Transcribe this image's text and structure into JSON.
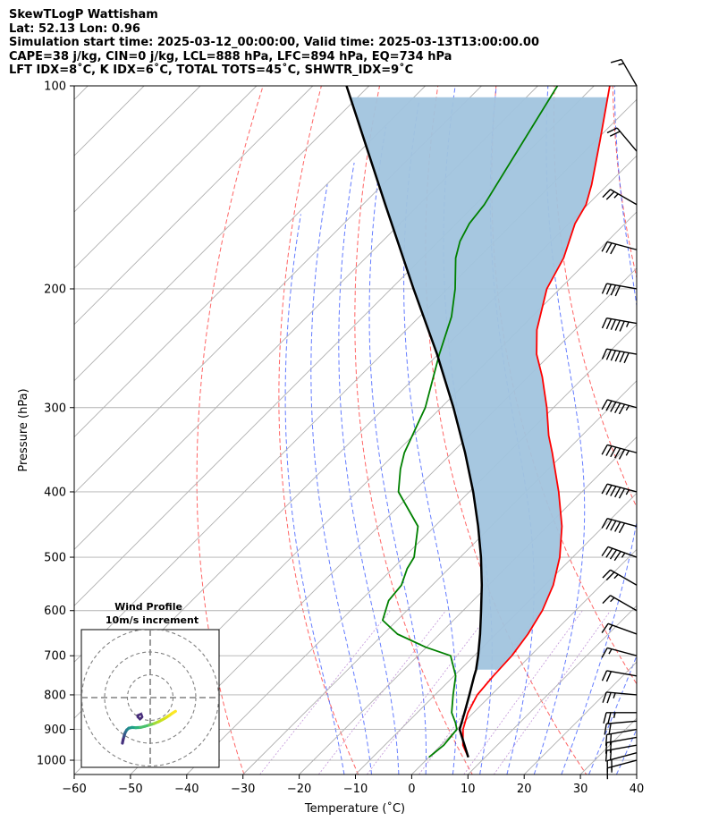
{
  "header": {
    "line1": "SkewTLogP Wattisham",
    "line2": "Lat: 52.13   Lon: 0.96",
    "line3": "Simulation start time: 2025-03-12_00:00:00, Valid time: 2025-03-13T13:00:00.00",
    "line4": "CAPE=38 j/kg, CIN=0 j/kg, LCL=888 hPa, LFC=894 hPa, EQ=734 hPa",
    "line5": "LFT IDX=8˚C, K IDX=6˚C, TOTAL TOTS=45˚C, SHWTR_IDX=9˚C"
  },
  "inset": {
    "title": "Wind Profile",
    "subtitle": "10m/s increment"
  },
  "chart_data": {
    "type": "line",
    "chart_kind": "skew-T log-P diagram",
    "xlabel": "Temperature (˚C)",
    "ylabel": "Pressure (hPa)",
    "xlim": [
      -60,
      40
    ],
    "ylim": [
      1050,
      100
    ],
    "y_scale": "log",
    "x_ticks": [
      -60,
      -50,
      -40,
      -30,
      -20,
      -10,
      0,
      10,
      20,
      30,
      40
    ],
    "x_tick_labels": [
      "−60",
      "−50",
      "−40",
      "−30",
      "−20",
      "−10",
      "0",
      "10",
      "20",
      "30",
      "40"
    ],
    "y_ticks": [
      1000,
      900,
      800,
      700,
      600,
      500,
      400,
      300,
      200,
      100
    ],
    "y_tick_labels": [
      "1000",
      "900",
      "800",
      "700",
      "600",
      "500",
      "400",
      "300",
      "200",
      "100"
    ],
    "grid": true,
    "series": [
      {
        "role": "temperature",
        "color": "#ff0000",
        "pressure": [
          990,
          950,
          900,
          850,
          800,
          750,
          700,
          650,
          600,
          550,
          500,
          450,
          400,
          350,
          330,
          300,
          270,
          250,
          230,
          200,
          180,
          160,
          150,
          140,
          120,
          100
        ],
        "temp": [
          7.0,
          3.9,
          1.1,
          -1.0,
          -2.5,
          -3.0,
          -3.3,
          -4.3,
          -5.9,
          -8.5,
          -12.3,
          -17.4,
          -24.1,
          -32.2,
          -35.9,
          -41.2,
          -47.5,
          -52.5,
          -56.8,
          -62.3,
          -64.8,
          -68.9,
          -70.3,
          -72.9,
          -79.4,
          -87.2
        ]
      },
      {
        "role": "dewpoint",
        "color": "#008000",
        "pressure": [
          990,
          950,
          900,
          880,
          850,
          800,
          750,
          700,
          680,
          650,
          620,
          580,
          550,
          520,
          500,
          450,
          400,
          370,
          350,
          300,
          250,
          220,
          200,
          180,
          170,
          160,
          150,
          100
        ],
        "temp": [
          0.0,
          0.5,
          0.0,
          -1.4,
          -3.9,
          -6.8,
          -9.7,
          -14.2,
          -20.1,
          -27.5,
          -32.6,
          -35.0,
          -35.5,
          -37.4,
          -38.2,
          -43.0,
          -52.6,
          -56.3,
          -58.5,
          -62.8,
          -69.8,
          -74.3,
          -78.6,
          -84.0,
          -86.2,
          -87.7,
          -88.4,
          -96.5
        ]
      },
      {
        "role": "parcel",
        "color": "#000000",
        "pressure": [
          990,
          900,
          888,
          850,
          800,
          750,
          734,
          700,
          650,
          600,
          550,
          500,
          450,
          400,
          350,
          300,
          250,
          200,
          150,
          100
        ],
        "temp": [
          7.0,
          0.5,
          0.0,
          -1.6,
          -3.9,
          -6.4,
          -7.2,
          -9.3,
          -12.8,
          -16.8,
          -21.2,
          -26.3,
          -32.3,
          -39.3,
          -47.7,
          -57.8,
          -70.2,
          -86.0,
          -106.0,
          -134.0
        ]
      }
    ],
    "cape_shading_color": "#a1c4de",
    "wind_barbs": {
      "color": "#000000",
      "levels_hpa": [
        1000,
        975,
        950,
        925,
        900,
        875,
        850,
        800,
        750,
        700,
        650,
        600,
        550,
        500,
        450,
        400,
        350,
        300,
        250,
        225,
        200,
        175,
        150,
        125,
        100
      ],
      "speed_kt": [
        15,
        20,
        20,
        20,
        20,
        20,
        25,
        25,
        20,
        15,
        15,
        15,
        25,
        45,
        50,
        55,
        55,
        55,
        60,
        55,
        40,
        30,
        25,
        20,
        15
      ],
      "dir_deg": [
        255,
        255,
        260,
        260,
        260,
        265,
        270,
        275,
        280,
        285,
        290,
        300,
        300,
        290,
        285,
        285,
        285,
        285,
        280,
        280,
        280,
        285,
        300,
        320,
        330
      ]
    },
    "hodograph": {
      "title": "Wind Profile",
      "subtitle": "10m/s increment",
      "ring_spacing_ms": 10,
      "u_ms": [
        -12.2,
        -11.9,
        -11.5,
        -11.0,
        -10.3,
        -9.4,
        -8.0,
        -6.3,
        -4.3,
        -2.3,
        -0.3,
        1.7,
        3.6,
        5.3,
        6.9,
        8.4,
        9.8,
        11.1
      ],
      "v_ms": [
        -20.0,
        -18.5,
        -17.0,
        -15.4,
        -14.2,
        -13.4,
        -13.1,
        -13.2,
        -13.1,
        -12.6,
        -12.0,
        -11.4,
        -10.6,
        -9.7,
        -8.8,
        -7.8,
        -6.8,
        -6.0
      ]
    }
  }
}
